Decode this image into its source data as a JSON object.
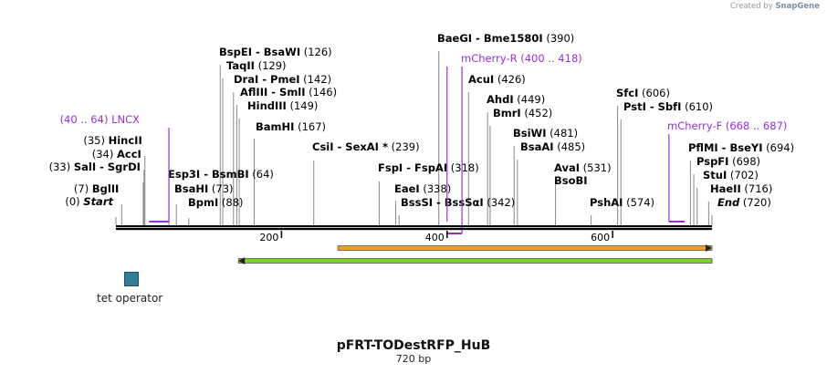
{
  "credit": {
    "prefix": "Created by",
    "brand": "SnapGene"
  },
  "title": "pFRT-TODestRFP_HuB",
  "length_label": "720 bp",
  "sequence_length": 720,
  "ticks": [
    {
      "value": 200,
      "label": "200"
    },
    {
      "value": 400,
      "label": "400"
    },
    {
      "value": 600,
      "label": "600"
    }
  ],
  "sites": [
    {
      "name": "Start",
      "pos": "(0)",
      "bp": 0,
      "italic": true
    },
    {
      "name": "BglII",
      "pos": "(7)",
      "bp": 7
    },
    {
      "name": "SalI  -  SgrDI",
      "pos": "(33)",
      "bp": 33
    },
    {
      "name": "AccI",
      "pos": "(34)",
      "bp": 34
    },
    {
      "name": "HincII",
      "pos": "(35)",
      "bp": 35
    },
    {
      "name": "Esp3I  -  BsmBI",
      "pos": "(64)",
      "bp": 64
    },
    {
      "name": "BsaHI",
      "pos": "(73)",
      "bp": 73
    },
    {
      "name": "BpmI",
      "pos": "(88)",
      "bp": 88
    },
    {
      "name": "BspEI  -  BsaWI",
      "pos": "(126)",
      "bp": 126
    },
    {
      "name": "TaqII",
      "pos": "(129)",
      "bp": 129
    },
    {
      "name": "DraI  -  PmeI",
      "pos": "(142)",
      "bp": 142
    },
    {
      "name": "AflIII  -  SmlI",
      "pos": "(146)",
      "bp": 146
    },
    {
      "name": "HindIII",
      "pos": "(149)",
      "bp": 149
    },
    {
      "name": "BamHI",
      "pos": "(167)",
      "bp": 167
    },
    {
      "name": "CsiI  -  SexAI *",
      "pos": "(239)",
      "bp": 239
    },
    {
      "name": "FspI  -  FspAI",
      "pos": "(318)",
      "bp": 318
    },
    {
      "name": "EaeI",
      "pos": "(338)",
      "bp": 338
    },
    {
      "name": "BssSI  -  BssSαI",
      "pos": "(342)",
      "bp": 342
    },
    {
      "name": "BaeGI  -  Bme1580I",
      "pos": "(390)",
      "bp": 390
    },
    {
      "name": "AcuI",
      "pos": "(426)",
      "bp": 426
    },
    {
      "name": "AhdI",
      "pos": "(449)",
      "bp": 449
    },
    {
      "name": "BmrI",
      "pos": "(452)",
      "bp": 452
    },
    {
      "name": "BsiWI",
      "pos": "(481)",
      "bp": 481
    },
    {
      "name": "BsaAI",
      "pos": "(485)",
      "bp": 485
    },
    {
      "name": "AvaI",
      "pos": "(531)",
      "bp": 531
    },
    {
      "name": "BsoBI",
      "pos": "",
      "bp": 531
    },
    {
      "name": "PshAI",
      "pos": "(574)",
      "bp": 574
    },
    {
      "name": "SfcI",
      "pos": "(606)",
      "bp": 606
    },
    {
      "name": "PstI  -  SbfI",
      "pos": "(610)",
      "bp": 610
    },
    {
      "name": "PflMI  -  BseYI",
      "pos": "(694)",
      "bp": 694
    },
    {
      "name": "PspFI",
      "pos": "(698)",
      "bp": 698
    },
    {
      "name": "StuI",
      "pos": "(702)",
      "bp": 702
    },
    {
      "name": "HaeII",
      "pos": "(716)",
      "bp": 716
    },
    {
      "name": "End",
      "pos": "(720)",
      "bp": 720,
      "italic": true
    }
  ],
  "primers": [
    {
      "name": "LNCX",
      "range": "(40 .. 64)",
      "start": 40,
      "end": 64,
      "label_text": "(40 .. 64)  LNCX"
    },
    {
      "name": "mCherry-R",
      "range": "(400 .. 418)",
      "start": 400,
      "end": 418,
      "label_text": "mCherry-R   (400 .. 418)"
    },
    {
      "name": "mCherry-F",
      "range": "(668 .. 687)",
      "start": 668,
      "end": 687,
      "label_text": "mCherry-F   (668 .. 687)"
    }
  ],
  "features": [
    {
      "name": "orange-feature",
      "start": 268,
      "end": 720,
      "direction": "forward",
      "color": "#f0a020"
    },
    {
      "name": "green-feature",
      "start": 148,
      "end": 720,
      "direction": "reverse",
      "color": "#7ed321"
    }
  ],
  "legend": [
    {
      "label": "tet operator",
      "color": "#2f7f96"
    }
  ]
}
